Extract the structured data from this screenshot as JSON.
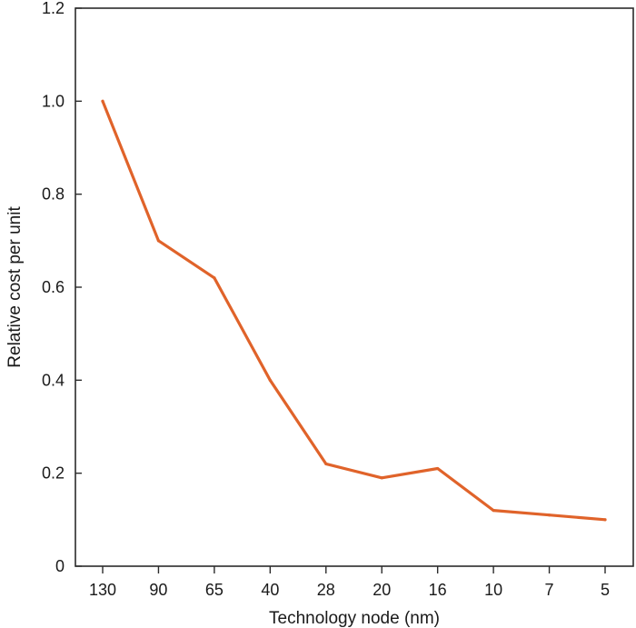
{
  "chart_data": {
    "type": "line",
    "title": "",
    "xlabel": "Technology node (nm)",
    "ylabel": "Relative cost per unit",
    "categories": [
      "130",
      "90",
      "65",
      "40",
      "28",
      "20",
      "16",
      "10",
      "7",
      "5"
    ],
    "series": [
      {
        "name": "",
        "values": [
          1.0,
          0.7,
          0.62,
          0.4,
          0.22,
          0.19,
          0.21,
          0.12,
          0.11,
          0.1
        ],
        "color": "#e0632a"
      }
    ],
    "ylim": [
      0,
      1.2
    ],
    "yticks": [
      "0",
      "0.2",
      "0.4",
      "0.6",
      "0.8",
      "1.0",
      "1.2"
    ],
    "grid": false,
    "legend": "none",
    "axis_color": "#2b2b2b"
  }
}
